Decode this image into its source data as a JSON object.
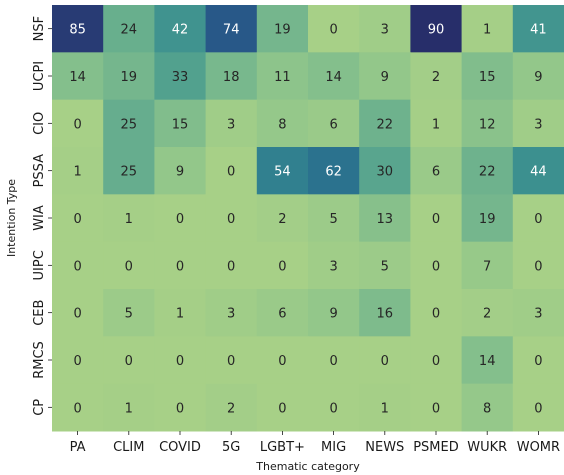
{
  "chart_data": {
    "type": "heatmap",
    "title": "",
    "xlabel": "Thematic category",
    "ylabel": "Intention Type",
    "x_categories": [
      "PA",
      "CLIM",
      "COVID",
      "5G",
      "LGBT+",
      "MIG",
      "NEWS",
      "PSMED",
      "WUKR",
      "WOMR"
    ],
    "y_categories": [
      "NSF",
      "UCPI",
      "CIO",
      "PSSA",
      "WIA",
      "UIPC",
      "CEB",
      "RMCS",
      "CP"
    ],
    "values": [
      [
        85,
        24,
        42,
        74,
        19,
        0,
        3,
        90,
        1,
        41
      ],
      [
        14,
        19,
        33,
        18,
        11,
        14,
        9,
        2,
        15,
        9
      ],
      [
        0,
        25,
        15,
        3,
        8,
        6,
        22,
        1,
        12,
        3
      ],
      [
        1,
        25,
        9,
        0,
        54,
        62,
        30,
        6,
        22,
        44
      ],
      [
        0,
        1,
        0,
        0,
        2,
        5,
        13,
        0,
        19,
        0
      ],
      [
        0,
        0,
        0,
        0,
        0,
        3,
        5,
        0,
        7,
        0
      ],
      [
        0,
        5,
        1,
        3,
        6,
        9,
        16,
        0,
        2,
        3
      ],
      [
        0,
        0,
        0,
        0,
        0,
        0,
        0,
        0,
        14,
        0
      ],
      [
        0,
        1,
        0,
        2,
        0,
        0,
        1,
        0,
        8,
        0
      ]
    ],
    "value_range": [
      0,
      90
    ],
    "colormap": "crest",
    "colorbar": false
  }
}
